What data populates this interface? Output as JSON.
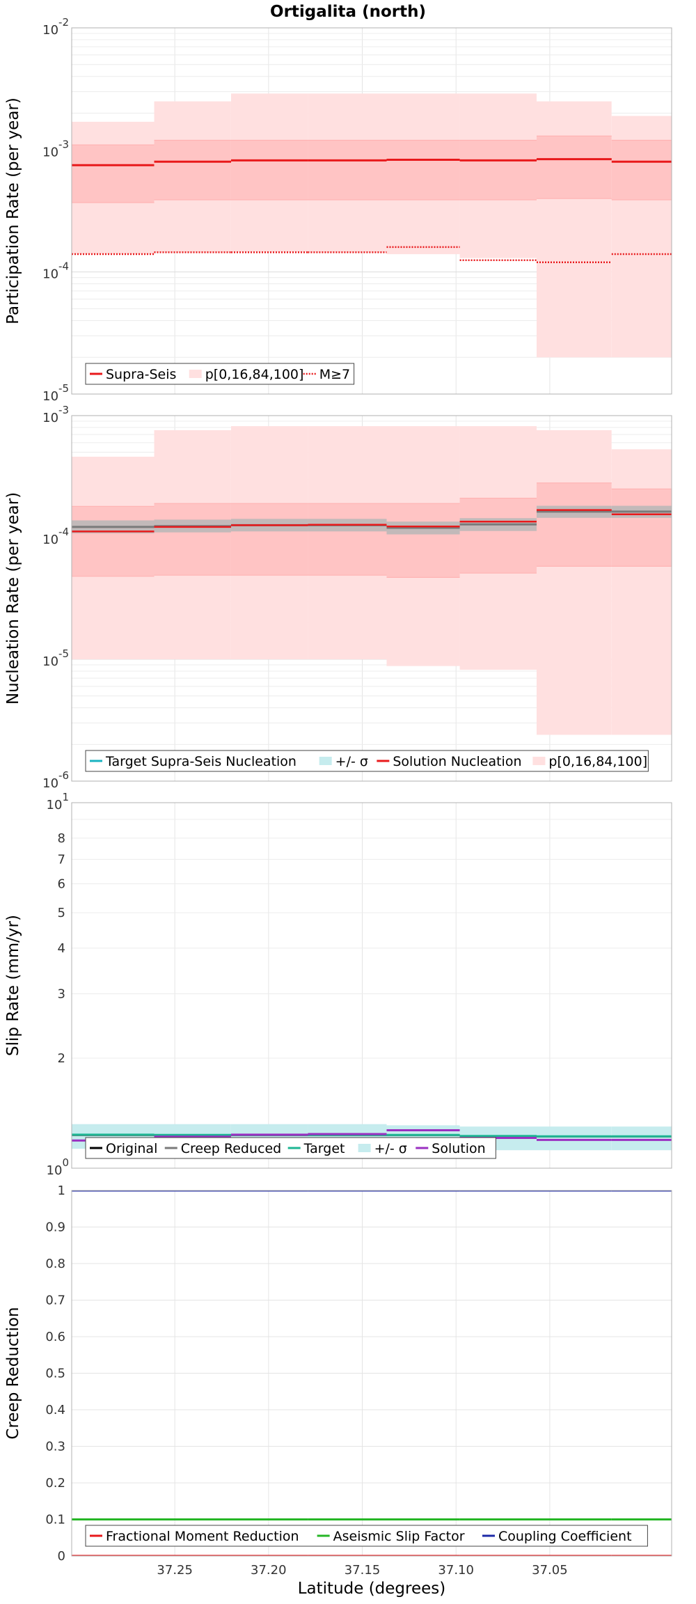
{
  "figure": {
    "title": "Ortigalita (north)",
    "xlabel": "Latitude (degrees)"
  },
  "colors": {
    "red": "#e8191b",
    "pink_outer": "#ffe0e0",
    "pink_inner": "#ffc4c4",
    "grey": "#7a7a7a",
    "grey_band": "#b7b7b7",
    "cyan": "#19b3c1",
    "cyan_band": "#c6ecee",
    "teal": "#1db593",
    "purple": "#9a2fc1",
    "black": "#000000",
    "green": "#26b626",
    "blue": "#1d2aa7"
  },
  "chart_data": [
    {
      "id": "participation",
      "type": "line",
      "title": "Ortigalita (north)",
      "xlabel": "Latitude (degrees)",
      "ylabel": "Participation Rate (per year)",
      "yscale": "log",
      "xlim": [
        37.305,
        36.985
      ],
      "ylim": [
        1e-05,
        0.01
      ],
      "grid": true,
      "legend_position": "bottom-left",
      "x_edges": [
        37.305,
        37.261,
        37.22,
        37.179,
        37.137,
        37.098,
        37.057,
        37.017,
        36.985
      ],
      "series": [
        {
          "name": "Supra-Seis",
          "style": "step-solid",
          "values": [
            0.00075,
            0.0008,
            0.00082,
            0.00082,
            0.00083,
            0.00082,
            0.00084,
            0.0008
          ]
        },
        {
          "name": "p[0,16,84,100]",
          "style": "band",
          "p0": [
            0.00014,
            0.000145,
            0.000145,
            0.000145,
            0.00014,
            0.00013,
            2e-05,
            2e-05
          ],
          "p16": [
            0.00037,
            0.00039,
            0.00039,
            0.00039,
            0.00039,
            0.00039,
            0.0004,
            0.00039
          ],
          "p84": [
            0.0011,
            0.0012,
            0.0012,
            0.0012,
            0.0012,
            0.0012,
            0.0013,
            0.0012
          ],
          "p100": [
            0.0017,
            0.0025,
            0.0029,
            0.0029,
            0.0029,
            0.0029,
            0.0025,
            0.0019
          ]
        },
        {
          "name": "M≥7",
          "style": "step-dotted",
          "values": [
            0.00014,
            0.000145,
            0.000145,
            0.000145,
            0.00016,
            0.000125,
            0.00012,
            0.00014
          ]
        }
      ],
      "legend": [
        "Supra-Seis",
        "p[0,16,84,100]",
        "M≥7"
      ],
      "y_ticks": [
        {
          "value": 0.01,
          "base": "10",
          "exp": "-2"
        },
        {
          "value": 0.001,
          "base": "10",
          "exp": "-3"
        },
        {
          "value": 0.0001,
          "base": "10",
          "exp": "-4"
        },
        {
          "value": 1e-05,
          "base": "10",
          "exp": "-5"
        }
      ]
    },
    {
      "id": "nucleation",
      "type": "line",
      "xlabel": "Latitude (degrees)",
      "ylabel": "Nucleation Rate (per year)",
      "yscale": "log",
      "xlim": [
        37.305,
        36.985
      ],
      "ylim": [
        1e-06,
        0.001
      ],
      "grid": true,
      "legend_position": "bottom-left",
      "x_edges": [
        37.305,
        37.261,
        37.22,
        37.179,
        37.137,
        37.098,
        37.057,
        37.017,
        36.985
      ],
      "series": [
        {
          "name": "Target Supra-Seis Nucleation",
          "style": "step-solid",
          "values": [
            0.000122,
            0.000124,
            0.000126,
            0.000126,
            0.00012,
            0.000128,
            0.000163,
            0.000163
          ]
        },
        {
          "name": "+/- σ",
          "style": "band",
          "lower": [
            0.000108,
            0.00011,
            0.000112,
            0.000112,
            0.000106,
            0.000113,
            0.000145,
            0.000145
          ],
          "upper": [
            0.000138,
            0.00014,
            0.000142,
            0.000142,
            0.000135,
            0.000144,
            0.000182,
            0.000182
          ]
        },
        {
          "name": "Solution Nucleation",
          "style": "step-solid",
          "values": [
            0.000112,
            0.000122,
            0.000126,
            0.000127,
            0.000123,
            0.000135,
            0.000168,
            0.000155
          ]
        },
        {
          "name": "p[0,16,84,100]",
          "style": "band",
          "p0": [
            1e-05,
            1e-05,
            1e-05,
            1e-05,
            8.8e-06,
            8.2e-06,
            2.4e-06,
            2.4e-06
          ],
          "p16": [
            4.8e-05,
            4.9e-05,
            4.9e-05,
            4.9e-05,
            4.7e-05,
            5.1e-05,
            5.8e-05,
            5.8e-05
          ],
          "p84": [
            0.00018,
            0.00019,
            0.00019,
            0.00019,
            0.00019,
            0.00021,
            0.00028,
            0.00025
          ],
          "p100": [
            0.00046,
            0.00076,
            0.00082,
            0.00082,
            0.00082,
            0.00082,
            0.00076,
            0.00053
          ]
        }
      ],
      "legend": [
        "Target Supra-Seis Nucleation",
        "+/- σ",
        "Solution Nucleation",
        "p[0,16,84,100]"
      ],
      "y_ticks": [
        {
          "value": 0.001,
          "base": "10",
          "exp": "-3"
        },
        {
          "value": 0.0001,
          "base": "10",
          "exp": "-4"
        },
        {
          "value": 1e-05,
          "base": "10",
          "exp": "-5"
        },
        {
          "value": 1e-06,
          "base": "10",
          "exp": "-6"
        }
      ]
    },
    {
      "id": "slip",
      "type": "line",
      "xlabel": "Latitude (degrees)",
      "ylabel": "Slip Rate (mm/yr)",
      "yscale": "log",
      "xlim": [
        37.305,
        36.985
      ],
      "ylim": [
        1,
        10
      ],
      "grid": true,
      "legend_position": "bottom-left",
      "x_edges": [
        37.305,
        37.261,
        37.22,
        37.179,
        37.137,
        37.098,
        37.057,
        37.017,
        36.985
      ],
      "series": [
        {
          "name": "Original",
          "style": "step-solid",
          "values": [
            1.23,
            1.23,
            1.23,
            1.23,
            1.23,
            1.22,
            1.22,
            1.22
          ]
        },
        {
          "name": "Creep Reduced",
          "style": "step-solid",
          "values": [
            1.23,
            1.23,
            1.23,
            1.23,
            1.23,
            1.22,
            1.22,
            1.22
          ]
        },
        {
          "name": "Target",
          "style": "step-solid",
          "values": [
            1.235,
            1.233,
            1.233,
            1.233,
            1.233,
            1.225,
            1.222,
            1.222
          ]
        },
        {
          "name": "+/- σ",
          "style": "band",
          "lower": [
            1.13,
            1.13,
            1.13,
            1.13,
            1.13,
            1.12,
            1.12,
            1.12
          ],
          "upper": [
            1.32,
            1.32,
            1.32,
            1.32,
            1.31,
            1.3,
            1.3,
            1.3
          ]
        },
        {
          "name": "Solution",
          "style": "step-solid",
          "values": [
            1.19,
            1.22,
            1.235,
            1.24,
            1.27,
            1.21,
            1.195,
            1.195
          ]
        }
      ],
      "legend": [
        "Original",
        "Creep Reduced",
        "Target",
        "+/- σ",
        "Solution"
      ],
      "y_ticks": [
        {
          "value": 10,
          "base": "10",
          "exp": "1"
        },
        {
          "value": 8,
          "label": "8"
        },
        {
          "value": 7,
          "label": "7"
        },
        {
          "value": 6,
          "label": "6"
        },
        {
          "value": 5,
          "label": "5"
        },
        {
          "value": 4,
          "label": "4"
        },
        {
          "value": 3,
          "label": "3"
        },
        {
          "value": 2,
          "label": "2"
        },
        {
          "value": 1,
          "base": "10",
          "exp": "0"
        }
      ]
    },
    {
      "id": "creep",
      "type": "line",
      "xlabel": "Latitude (degrees)",
      "ylabel": "Creep Reduction",
      "yscale": "linear",
      "xlim": [
        37.305,
        36.985
      ],
      "ylim": [
        0,
        1
      ],
      "grid": true,
      "legend_position": "bottom-left",
      "x_edges": [
        37.305,
        37.261,
        37.22,
        37.179,
        37.137,
        37.098,
        37.057,
        37.017,
        36.985
      ],
      "series": [
        {
          "name": "Fractional Moment Reduction",
          "style": "step-solid",
          "values": [
            0,
            0,
            0,
            0,
            0,
            0,
            0,
            0
          ]
        },
        {
          "name": "Aseismic Slip Factor",
          "style": "step-solid",
          "values": [
            0.1,
            0.1,
            0.1,
            0.1,
            0.1,
            0.1,
            0.1,
            0.1
          ]
        },
        {
          "name": "Coupling Coefficient",
          "style": "step-solid",
          "values": [
            1,
            1,
            1,
            1,
            1,
            1,
            1,
            1
          ]
        }
      ],
      "legend": [
        "Fractional Moment Reduction",
        "Aseismic Slip Factor",
        "Coupling Coefficient"
      ],
      "y_ticks": [
        {
          "value": 1,
          "label": "1"
        },
        {
          "value": 0.9,
          "label": "0.9"
        },
        {
          "value": 0.8,
          "label": "0.8"
        },
        {
          "value": 0.7,
          "label": "0.7"
        },
        {
          "value": 0.6,
          "label": "0.6"
        },
        {
          "value": 0.5,
          "label": "0.5"
        },
        {
          "value": 0.4,
          "label": "0.4"
        },
        {
          "value": 0.3,
          "label": "0.3"
        },
        {
          "value": 0.2,
          "label": "0.2"
        },
        {
          "value": 0.1,
          "label": "0.1"
        },
        {
          "value": 0,
          "label": "0"
        }
      ],
      "x_ticks": [
        {
          "value": 37.25,
          "label": "37.25"
        },
        {
          "value": 37.2,
          "label": "37.20"
        },
        {
          "value": 37.15,
          "label": "37.15"
        },
        {
          "value": 37.1,
          "label": "37.10"
        },
        {
          "value": 37.05,
          "label": "37.05"
        }
      ]
    }
  ]
}
